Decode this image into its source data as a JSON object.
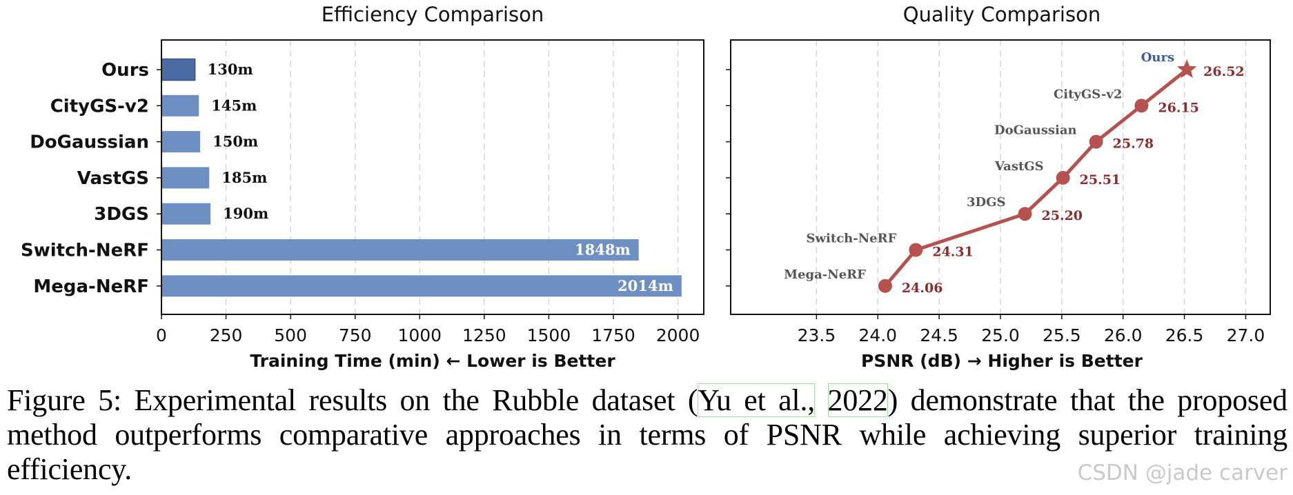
{
  "chart_data": [
    {
      "type": "bar",
      "orientation": "horizontal",
      "title": "Efficiency Comparison",
      "xlabel": "Training Time (min) ← Lower is Better",
      "ylabel": "",
      "categories": [
        "Ours",
        "CityGS-v2",
        "DoGaussian",
        "VastGS",
        "3DGS",
        "Switch-NeRF",
        "Mega-NeRF"
      ],
      "values": [
        130,
        145,
        150,
        185,
        190,
        1848,
        2014
      ],
      "value_labels": [
        "130m",
        "145m",
        "150m",
        "185m",
        "190m",
        "1848m",
        "2014m"
      ],
      "xlim": [
        0,
        2100
      ],
      "xticks": [
        0,
        250,
        500,
        750,
        1000,
        1250,
        1500,
        1750,
        2000
      ],
      "grid": "vertical dashed",
      "colors": {
        "highlight": "#4c6aa3",
        "bar": "#6d8fc2",
        "inside_label": "#ffffff",
        "outside_label": "#111111"
      }
    },
    {
      "type": "line",
      "title": "Quality Comparison",
      "xlabel": "PSNR (dB) → Higher is Better",
      "ylabel": "",
      "points": [
        {
          "name": "Mega-NeRF",
          "x": 24.06,
          "label": "24.06"
        },
        {
          "name": "Switch-NeRF",
          "x": 24.31,
          "label": "24.31"
        },
        {
          "name": "3DGS",
          "x": 25.2,
          "label": "25.20"
        },
        {
          "name": "VastGS",
          "x": 25.51,
          "label": "25.51"
        },
        {
          "name": "DoGaussian",
          "x": 25.78,
          "label": "25.78"
        },
        {
          "name": "CityGS-v2",
          "x": 26.15,
          "label": "26.15"
        },
        {
          "name": "Ours",
          "x": 26.52,
          "label": "26.52",
          "marker": "star"
        }
      ],
      "xlim": [
        22.8,
        27.2
      ],
      "xticks": [
        "23.5",
        "24.0",
        "24.5",
        "25.0",
        "25.5",
        "26.0",
        "26.5",
        "27.0"
      ],
      "grid": "vertical dashed",
      "colors": {
        "line": "#b5524f",
        "value_label": "#8b2b2b",
        "name_label": "#555555",
        "ours_label": "#3d5a99"
      }
    }
  ],
  "caption": {
    "prefix": "Figure 5: Experimental results on the Rubble dataset (",
    "cite_author": "Yu et al.,",
    "cite_year": "2022",
    "suffix": ") demonstrate that the proposed method outperforms comparative approaches in terms of PSNR while achieving superior training efficiency."
  },
  "watermark": "CSDN @jade carver"
}
